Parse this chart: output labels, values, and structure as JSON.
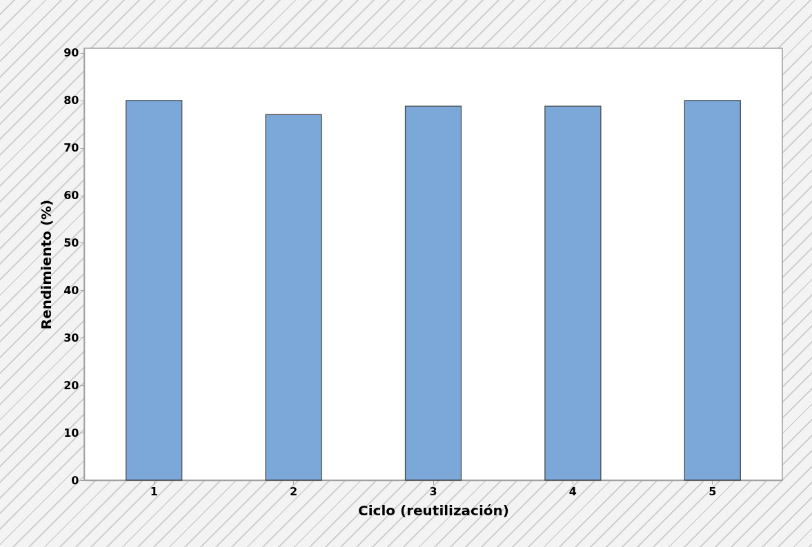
{
  "chart_data": {
    "type": "bar",
    "xlabel": "Ciclo (reutilización)",
    "ylabel": "Rendimiento (%)",
    "categories": [
      "1",
      "2",
      "3",
      "4",
      "5"
    ],
    "values": [
      80,
      77,
      78.8,
      78.8,
      80
    ],
    "color": "#7ba7d9",
    "ylim": [
      0,
      91
    ],
    "yticks": [
      0,
      10,
      20,
      30,
      40,
      50,
      60,
      70,
      80,
      90
    ],
    "grid": false
  }
}
